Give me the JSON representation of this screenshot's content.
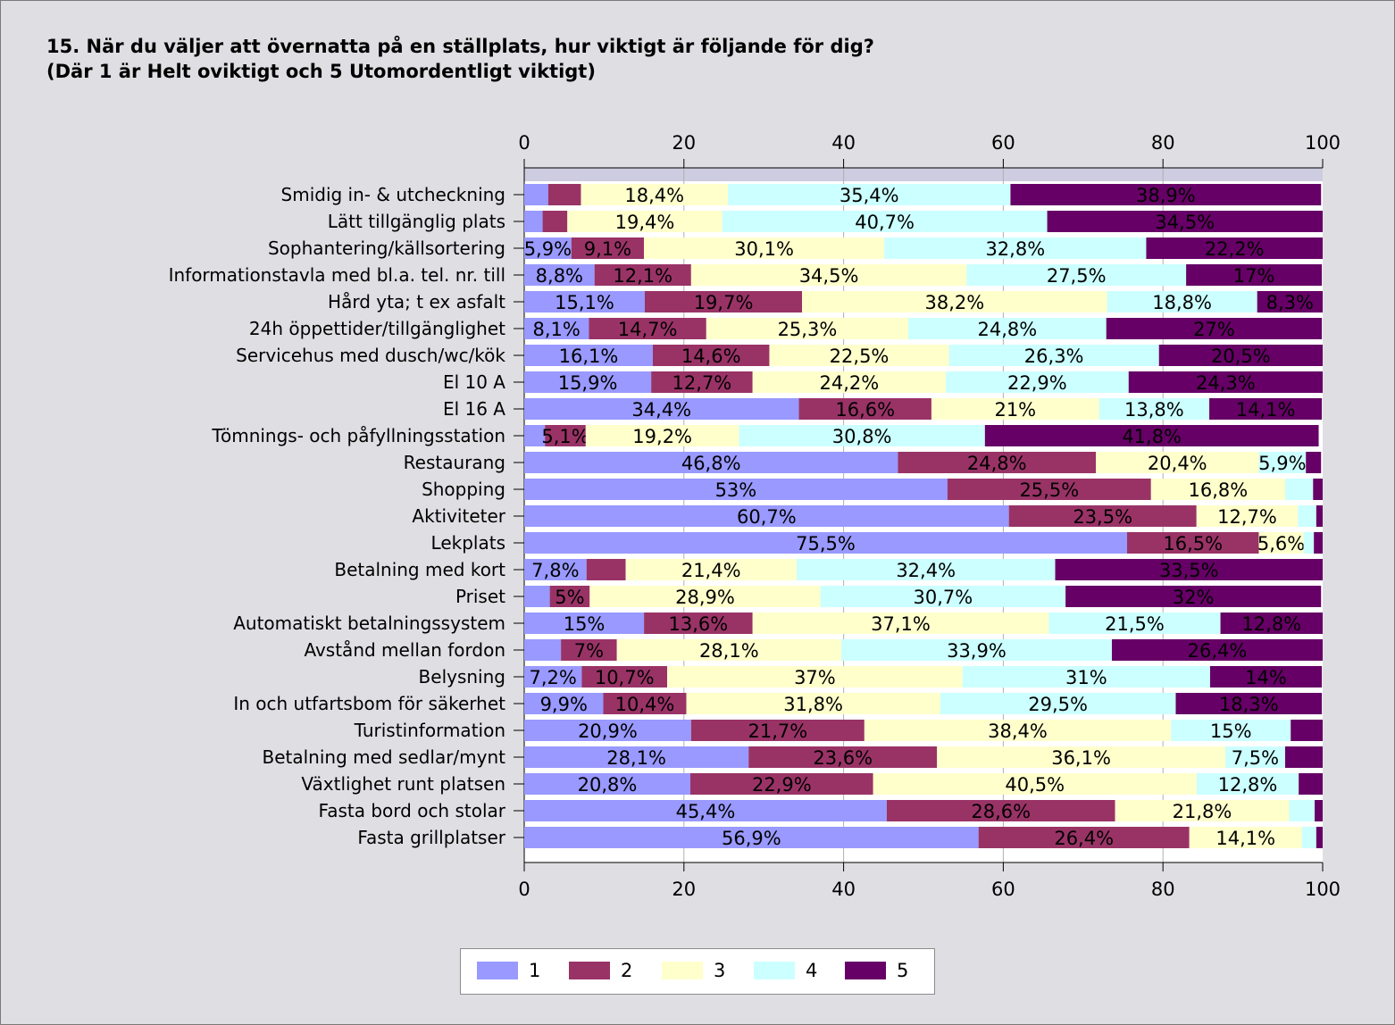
{
  "title": {
    "line1": "15. När du väljer att övernatta på en ställplats, hur viktigt är följande för dig?",
    "line2": "(Där 1 är Helt oviktigt och 5 Utomordentligt viktigt)"
  },
  "colors": {
    "page_bg": "#dfdfe3",
    "plot_bg": "#ffffff",
    "top_band": "#cdcce0",
    "series": [
      "#9999ff",
      "#993366",
      "#ffffcc",
      "#ccffff",
      "#660066"
    ]
  },
  "chart_data": {
    "type": "bar",
    "orientation": "horizontal",
    "stacked": true,
    "xlim": [
      0,
      100
    ],
    "xticks": [
      0,
      20,
      40,
      60,
      80,
      100
    ],
    "tick_labels_top": true,
    "tick_labels_bottom": true,
    "legend_position": "bottom",
    "categories": [
      "Smidig in- & utcheckning",
      "Lätt tillgänglig plats",
      "Sophantering/källsortering",
      "Informationstavla med bl.a. tel. nr. till",
      "Hård yta; t ex asfalt",
      "24h öppettider/tillgänglighet",
      "Servicehus med dusch/wc/kök",
      "El 10 A",
      "El 16 A",
      "Tömnings- och påfyllningsstation",
      "Restaurang",
      "Shopping",
      "Aktiviteter",
      "Lekplats",
      "Betalning med kort",
      "Priset",
      "Automatiskt betalningssystem",
      "Avstånd mellan fordon",
      "Belysning",
      "In och utfartsbom för säkerhet",
      "Turistinformation",
      "Betalning med sedlar/mynt",
      "Växtlighet runt platsen",
      "Fasta bord och stolar",
      "Fasta grillplatser"
    ],
    "series": [
      {
        "name": "1",
        "values": [
          3,
          2.3,
          5.9,
          8.8,
          15.1,
          8.1,
          16.1,
          15.9,
          34.4,
          2.6,
          46.8,
          53,
          60.7,
          75.5,
          7.8,
          3.2,
          15,
          4.6,
          7.2,
          9.9,
          20.9,
          28.1,
          20.8,
          45.4,
          56.9
        ]
      },
      {
        "name": "2",
        "values": [
          4.1,
          3.1,
          9.1,
          12.1,
          19.7,
          14.7,
          14.6,
          12.7,
          16.6,
          5.1,
          24.8,
          25.5,
          23.5,
          16.5,
          4.9,
          5,
          13.6,
          7,
          10.7,
          10.4,
          21.7,
          23.6,
          22.9,
          28.6,
          26.4
        ]
      },
      {
        "name": "3",
        "values": [
          18.4,
          19.4,
          30.1,
          34.5,
          38.2,
          25.3,
          22.5,
          24.2,
          21,
          19.2,
          20.4,
          16.8,
          12.7,
          5.6,
          21.4,
          28.9,
          37.1,
          28.1,
          37,
          31.8,
          38.4,
          36.1,
          40.5,
          21.8,
          14.1
        ]
      },
      {
        "name": "4",
        "values": [
          35.4,
          40.7,
          32.8,
          27.5,
          18.8,
          24.8,
          26.3,
          22.9,
          13.8,
          30.8,
          5.9,
          3.5,
          2.3,
          1.3,
          32.4,
          30.7,
          21.5,
          33.9,
          31,
          29.5,
          15,
          7.5,
          12.8,
          3.2,
          1.8
        ]
      },
      {
        "name": "5",
        "values": [
          38.9,
          34.5,
          22.2,
          17,
          8.3,
          27,
          20.5,
          24.3,
          14.1,
          41.8,
          1.9,
          1.2,
          0.8,
          1.1,
          33.5,
          32,
          12.8,
          26.4,
          14,
          18.3,
          4,
          4.7,
          3,
          1,
          0.8
        ]
      }
    ],
    "data_labels": [
      [
        "",
        "",
        "18,4%",
        "35,4%",
        "38,9%"
      ],
      [
        "",
        "",
        "19,4%",
        "40,7%",
        "34,5%"
      ],
      [
        "5,9%",
        "9,1%",
        "30,1%",
        "32,8%",
        "22,2%"
      ],
      [
        "8,8%",
        "12,1%",
        "34,5%",
        "27,5%",
        "17%"
      ],
      [
        "15,1%",
        "19,7%",
        "38,2%",
        "18,8%",
        "8,3%"
      ],
      [
        "8,1%",
        "14,7%",
        "25,3%",
        "24,8%",
        "27%"
      ],
      [
        "16,1%",
        "14,6%",
        "22,5%",
        "26,3%",
        "20,5%"
      ],
      [
        "15,9%",
        "12,7%",
        "24,2%",
        "22,9%",
        "24,3%"
      ],
      [
        "34,4%",
        "16,6%",
        "21%",
        "13,8%",
        "14,1%"
      ],
      [
        "",
        "5,1%",
        "19,2%",
        "30,8%",
        "41,8%"
      ],
      [
        "46,8%",
        "24,8%",
        "20,4%",
        "5,9%",
        ""
      ],
      [
        "53%",
        "25,5%",
        "16,8%",
        "",
        ""
      ],
      [
        "60,7%",
        "23,5%",
        "12,7%",
        "",
        ""
      ],
      [
        "75,5%",
        "16,5%",
        "5,6%",
        "",
        ""
      ],
      [
        "7,8%",
        "",
        "21,4%",
        "32,4%",
        "33,5%"
      ],
      [
        "",
        "5%",
        "28,9%",
        "30,7%",
        "32%"
      ],
      [
        "15%",
        "13,6%",
        "37,1%",
        "21,5%",
        "12,8%"
      ],
      [
        "",
        "7%",
        "28,1%",
        "33,9%",
        "26,4%"
      ],
      [
        "7,2%",
        "10,7%",
        "37%",
        "31%",
        "14%"
      ],
      [
        "9,9%",
        "10,4%",
        "31,8%",
        "29,5%",
        "18,3%"
      ],
      [
        "20,9%",
        "21,7%",
        "38,4%",
        "15%",
        ""
      ],
      [
        "28,1%",
        "23,6%",
        "36,1%",
        "7,5%",
        ""
      ],
      [
        "20,8%",
        "22,9%",
        "40,5%",
        "12,8%",
        ""
      ],
      [
        "45,4%",
        "28,6%",
        "21,8%",
        "",
        ""
      ],
      [
        "56,9%",
        "26,4%",
        "14,1%",
        "",
        ""
      ]
    ]
  }
}
